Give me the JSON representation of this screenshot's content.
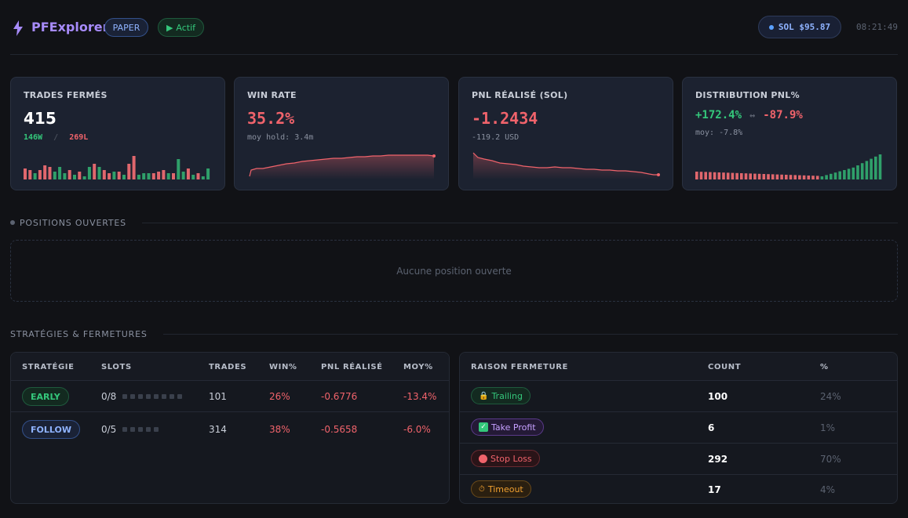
{
  "header": {
    "app_name": "PFExplorer",
    "mode_badge": "PAPER",
    "status_badge": "Actif",
    "sol_label": "SOL $95.87",
    "clock": "08:21:49"
  },
  "colors": {
    "accent": "#a78bfa",
    "green": "#34c77b",
    "red": "#f0636b",
    "blue": "#8fb3ff"
  },
  "cards": {
    "trades": {
      "label": "TRADES FERMÉS",
      "value": "415",
      "wins": "146W",
      "sep": "/",
      "losses": "269L"
    },
    "winrate": {
      "label": "WIN RATE",
      "value": "35.2%",
      "sub": "moy hold: 3.4m"
    },
    "pnl": {
      "label": "PNL RÉALISÉ (SOL)",
      "value": "-1.2434",
      "sub": "-119.2 USD"
    },
    "dist": {
      "label": "DISTRIBUTION PNL%",
      "max": "+172.4%",
      "arrow": "↔",
      "min": "-87.9%",
      "sub": "moy: -7.8%"
    }
  },
  "sections": {
    "positions": "POSITIONS OUVERTES",
    "empty": "Aucune position ouverte",
    "strategies": "STRATÉGIES & FERMETURES"
  },
  "strategy_table": {
    "headers": [
      "STRATÉGIE",
      "SLOTS",
      "TRADES",
      "WIN%",
      "PNL RÉALISÉ",
      "MOY%"
    ],
    "rows": [
      {
        "name": "EARLY",
        "slots": "0/8",
        "slot_count": 8,
        "trades": "101",
        "win": "26%",
        "pnl": "-0.6776",
        "moy": "-13.4%"
      },
      {
        "name": "FOLLOW",
        "slots": "0/5",
        "slot_count": 5,
        "trades": "314",
        "win": "38%",
        "pnl": "-0.5658",
        "moy": "-6.0%"
      }
    ]
  },
  "reason_table": {
    "headers": [
      "RAISON FERMETURE",
      "COUNT",
      "%"
    ],
    "rows": [
      {
        "label": "Trailing",
        "icon": "lock-icon",
        "count": "100",
        "pct": "24%"
      },
      {
        "label": "Take Profit",
        "icon": "check-icon",
        "count": "6",
        "pct": "1%"
      },
      {
        "label": "Stop Loss",
        "icon": "red-circle-icon",
        "count": "292",
        "pct": "70%"
      },
      {
        "label": "Timeout",
        "icon": "stopwatch-icon",
        "count": "17",
        "pct": "4%"
      }
    ]
  }
}
